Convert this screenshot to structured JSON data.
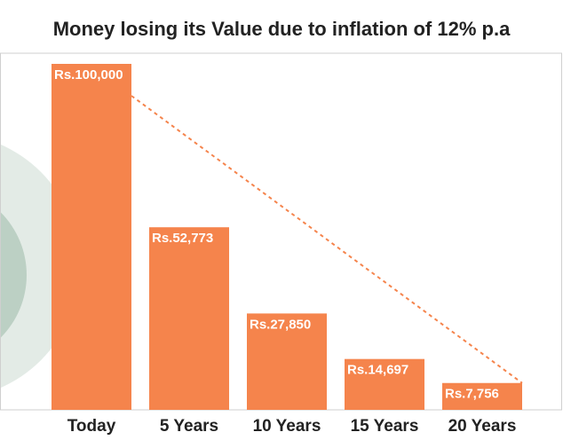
{
  "chart_data": {
    "type": "bar",
    "title": "Money losing its Value due to inflation of 12% p.a",
    "categories": [
      "Today",
      "5 Years",
      "10 Years",
      "15 Years",
      "20 Years"
    ],
    "values": [
      100000,
      52773,
      27850,
      14697,
      7756
    ],
    "value_labels": [
      "Rs.100,000",
      "Rs.52,773",
      "Rs.27,850",
      "Rs.14,697",
      "Rs.7,756"
    ],
    "color": "#f5844c"
  }
}
